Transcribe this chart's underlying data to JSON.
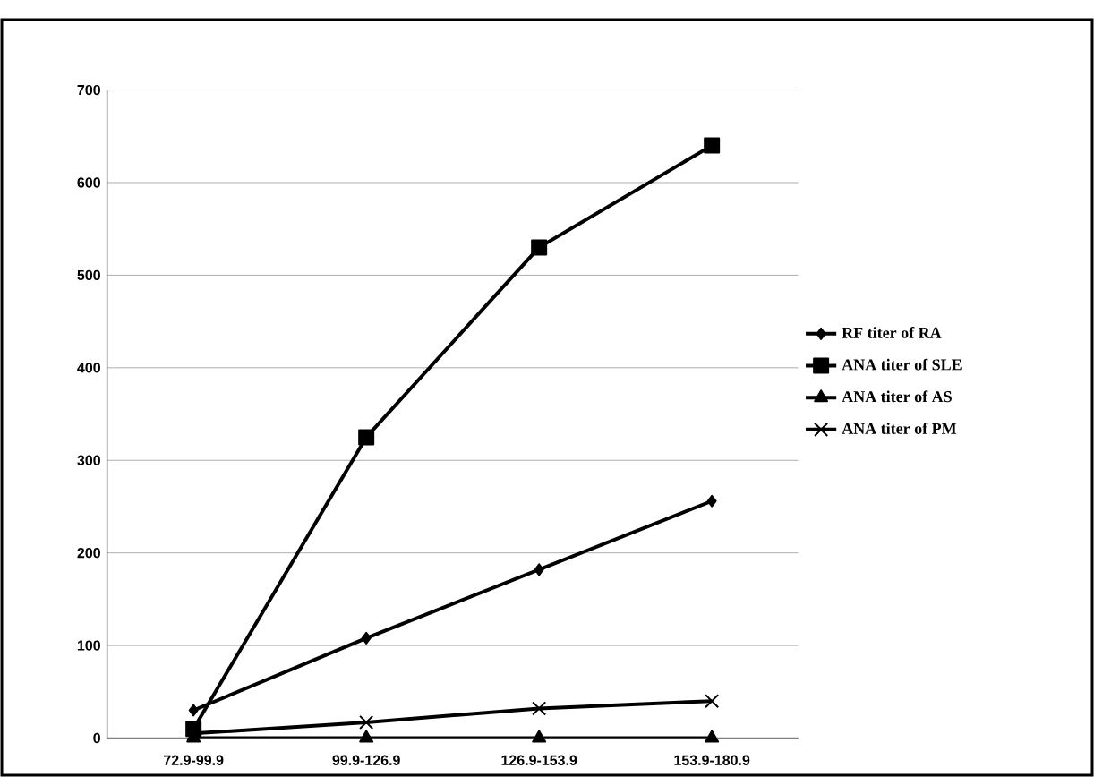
{
  "chart_data": {
    "type": "line",
    "categories": [
      "72.9-99.9",
      "99.9-126.9",
      "126.9-153.9",
      "153.9-180.9"
    ],
    "series": [
      {
        "name": "RF titer of RA",
        "color": "#000000",
        "marker": "diamond",
        "values": [
          30,
          108,
          182,
          256
        ]
      },
      {
        "name": "ANA titer of SLE",
        "color": "#000000",
        "marker": "square",
        "values": [
          10,
          325,
          530,
          640
        ]
      },
      {
        "name": "ANA titer of AS",
        "color": "#000000",
        "marker": "triangle",
        "values": [
          0,
          0,
          0,
          0
        ]
      },
      {
        "name": "ANA titer of PM",
        "color": "#000000",
        "marker": "cross",
        "values": [
          5,
          17,
          32,
          40
        ]
      }
    ],
    "ylim": [
      0,
      700
    ],
    "yticks": [
      0,
      100,
      200,
      300,
      400,
      500,
      600,
      700
    ],
    "grid": "y",
    "legend": "right",
    "line_style": "solid"
  }
}
